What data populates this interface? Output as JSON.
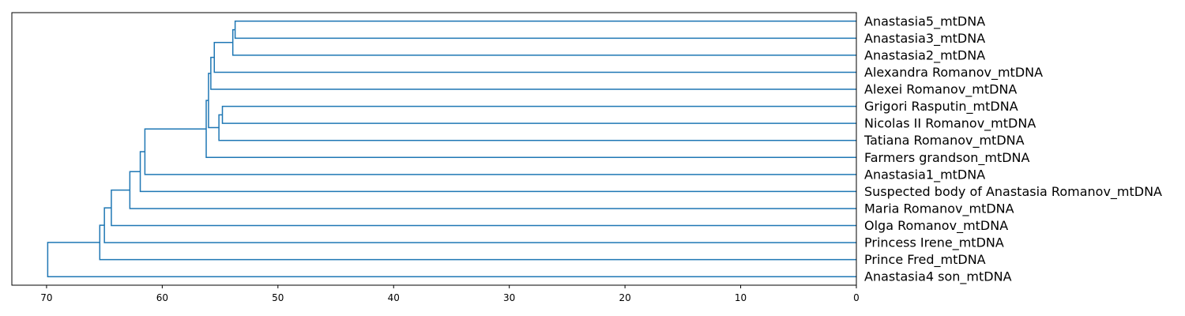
{
  "chart_data": {
    "type": "dendrogram",
    "orientation": "left",
    "color": "#1f77b4",
    "xlim": [
      73,
      0
    ],
    "xticks": [
      70,
      60,
      50,
      40,
      30,
      20,
      10,
      0
    ],
    "xtick_labels": [
      "70",
      "60",
      "50",
      "40",
      "30",
      "20",
      "10",
      "0"
    ],
    "leaves": [
      "Anastasia5_mtDNA",
      "Anastasia3_mtDNA",
      "Anastasia2_mtDNA",
      "Alexandra Romanov_mtDNA",
      "Alexei Romanov_mtDNA",
      "Grigori Rasputin_mtDNA",
      "Nicolas II Romanov_mtDNA",
      "Tatiana Romanov_mtDNA",
      "Farmers grandson_mtDNA",
      "Anastasia1_mtDNA",
      "Suspected body of Anastasia Romanov_mtDNA",
      "Maria Romanov_mtDNA",
      "Olga Romanov_mtDNA",
      "Princess Irene_mtDNA",
      "Prince Fred_mtDNA",
      "Anastasia4 son_mtDNA"
    ],
    "merges": [
      {
        "a": "Anastasia5_mtDNA",
        "b": "Anastasia3_mtDNA",
        "height": 53.7
      },
      {
        "a": "M1",
        "b": "Anastasia2_mtDNA",
        "height": 53.9
      },
      {
        "a": "M2",
        "b": "Alexandra Romanov_mtDNA",
        "height": 55.5
      },
      {
        "a": "M3",
        "b": "Alexei Romanov_mtDNA",
        "height": 55.8
      },
      {
        "a": "Grigori Rasputin_mtDNA",
        "b": "Nicolas II Romanov_mtDNA",
        "height": 54.8
      },
      {
        "a": "M5",
        "b": "Tatiana Romanov_mtDNA",
        "height": 55.1
      },
      {
        "a": "M4",
        "b": "M6",
        "height": 56.0
      },
      {
        "a": "M7",
        "b": "Farmers grandson_mtDNA",
        "height": 56.2
      },
      {
        "a": "M8",
        "b": "Anastasia1_mtDNA",
        "height": 61.5
      },
      {
        "a": "M9",
        "b": "Suspected body of Anastasia Romanov_mtDNA",
        "height": 61.9
      },
      {
        "a": "M10",
        "b": "Maria Romanov_mtDNA",
        "height": 62.8
      },
      {
        "a": "M11",
        "b": "Olga Romanov_mtDNA",
        "height": 64.4
      },
      {
        "a": "M12",
        "b": "Princess Irene_mtDNA",
        "height": 65.0
      },
      {
        "a": "M13",
        "b": "Prince Fred_mtDNA",
        "height": 65.4
      },
      {
        "a": "M14",
        "b": "Anastasia4 son_mtDNA",
        "height": 69.9
      }
    ]
  }
}
